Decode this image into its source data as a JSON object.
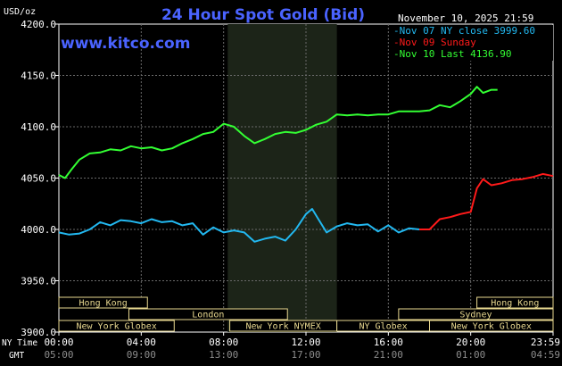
{
  "chart_data": {
    "type": "line",
    "title": "24 Hour Spot Gold (Bid)",
    "site": "www.kitco.com",
    "timestamp": "November 10, 2025 21:59",
    "ylabel": "USD/oz",
    "ylim": [
      3900,
      4200
    ],
    "yticks": [
      {
        "value": 4200,
        "label": "4200.0"
      },
      {
        "value": 4150,
        "label": "4150.0"
      },
      {
        "value": 4100,
        "label": "4100.0"
      },
      {
        "value": 4050,
        "label": "4050.0"
      },
      {
        "value": 4000,
        "label": "4000.0"
      },
      {
        "value": 3950,
        "label": "3950.0"
      },
      {
        "value": 3900,
        "label": "3900.0"
      }
    ],
    "xlim": [
      0,
      24
    ],
    "xticks": [
      {
        "hour": 0,
        "ny": "00:00",
        "gmt": "05:00"
      },
      {
        "hour": 4,
        "ny": "04:00",
        "gmt": "09:00"
      },
      {
        "hour": 8,
        "ny": "08:00",
        "gmt": "13:00"
      },
      {
        "hour": 12,
        "ny": "12:00",
        "gmt": "17:00"
      },
      {
        "hour": 16,
        "ny": "16:00",
        "gmt": "21:00"
      },
      {
        "hour": 20,
        "ny": "20:00",
        "gmt": "01:00"
      },
      {
        "hour": 24,
        "ny": "23:59",
        "gmt": "04:59"
      }
    ],
    "axis_row_labels": {
      "ny": "NY Time",
      "gmt": "GMT"
    },
    "shaded_hours": [
      8.2,
      13.5
    ],
    "legend": [
      {
        "text": "Nov 07 NY close 3999.60",
        "color": "#22b8f0"
      },
      {
        "text": "Nov 09 Sunday",
        "color": "#ff1a1a"
      },
      {
        "text": "Nov 10 Last 4136.90",
        "color": "#33ff33"
      }
    ],
    "legend_position": "top-right",
    "grid": true,
    "sessions": [
      {
        "name": "Hong Kong",
        "start": 0.0,
        "end": 4.3,
        "row": 0
      },
      {
        "name": "London",
        "start": 3.4,
        "end": 11.1,
        "row": 1
      },
      {
        "name": "New York Globex",
        "start": 0.0,
        "end": 5.6,
        "row": 2
      },
      {
        "name": "New York NYMEX",
        "start": 8.3,
        "end": 13.5,
        "row": 2
      },
      {
        "name": "NY Globex",
        "start": 13.5,
        "end": 18.0,
        "row": 2
      },
      {
        "name": "Hong Kong",
        "start": 20.3,
        "end": 24.0,
        "row": 0
      },
      {
        "name": "Sydney",
        "start": 16.5,
        "end": 24.0,
        "row": 1
      },
      {
        "name": "New York Globex",
        "start": 18.0,
        "end": 24.0,
        "row": 2
      }
    ],
    "series": [
      {
        "name": "Nov 07 NY close 3999.60",
        "color": "#22b8f0",
        "x": [
          0,
          0.5,
          1,
          1.5,
          2,
          2.5,
          3,
          3.5,
          4,
          4.5,
          5,
          5.5,
          6,
          6.5,
          7,
          7.5,
          8,
          8.5,
          9,
          9.5,
          10,
          10.5,
          11,
          11.5,
          12,
          12.3,
          12.6,
          13,
          13.5,
          14,
          14.5,
          15,
          15.5,
          16,
          16.5,
          17,
          17.5
        ],
        "y": [
          3997,
          3995,
          3996,
          4000,
          4007,
          4004,
          4009,
          4008,
          4006,
          4010,
          4007,
          4008,
          4004,
          4006,
          3995,
          4002,
          3997,
          3999,
          3997,
          3988,
          3991,
          3993,
          3989,
          4000,
          4015,
          4020,
          4010,
          3997,
          4003,
          4006,
          4004,
          4005,
          3998,
          4004,
          3997,
          4001,
          4000
        ]
      },
      {
        "name": "Nov 09 Sunday",
        "color": "#ff1a1a",
        "x": [
          17.5,
          18,
          18.5,
          19,
          19.5,
          20,
          20.3,
          20.6,
          21,
          21.5,
          22,
          22.5,
          23,
          23.5,
          24
        ],
        "y": [
          4000,
          4000,
          4010,
          4012,
          4015,
          4017,
          4040,
          4049,
          4043,
          4045,
          4048,
          4049,
          4051,
          4054,
          4052
        ]
      },
      {
        "name": "Nov 10 Last 4136.90",
        "color": "#33ff33",
        "x": [
          0,
          0.3,
          0.6,
          1,
          1.5,
          2,
          2.5,
          3,
          3.5,
          4,
          4.5,
          5,
          5.5,
          6,
          6.5,
          7,
          7.5,
          8,
          8.5,
          9,
          9.5,
          10,
          10.5,
          11,
          11.5,
          12,
          12.5,
          13,
          13.5,
          14,
          14.5,
          15,
          15.5,
          16,
          16.5,
          17,
          17.5,
          18,
          18.5,
          19,
          19.5,
          20,
          20.3,
          20.6,
          21,
          21.3
        ],
        "y": [
          4053,
          4050,
          4058,
          4068,
          4074,
          4075,
          4078,
          4077,
          4081,
          4079,
          4080,
          4077,
          4079,
          4084,
          4088,
          4093,
          4095,
          4103,
          4100,
          4091,
          4084,
          4088,
          4093,
          4095,
          4094,
          4097,
          4102,
          4105,
          4112,
          4111,
          4112,
          4111,
          4112,
          4112,
          4115,
          4115,
          4115,
          4116,
          4121,
          4119,
          4125,
          4132,
          4139,
          4133,
          4136,
          4136
        ]
      }
    ]
  }
}
